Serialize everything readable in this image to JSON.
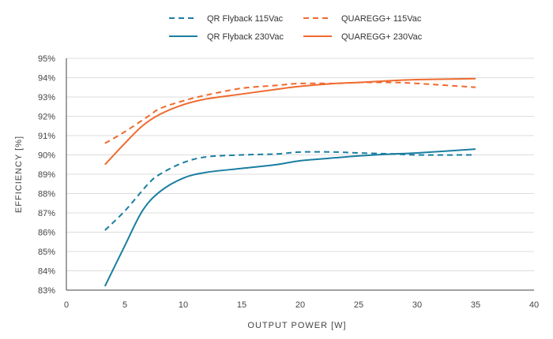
{
  "chart_data": {
    "type": "line",
    "title": "",
    "xlabel": "OUTPUT POWER [W]",
    "ylabel": "EFFICIENCY [%]",
    "xlim": [
      0,
      40
    ],
    "ylim": [
      83,
      95
    ],
    "xticks": [
      0,
      5,
      10,
      15,
      20,
      25,
      30,
      35,
      40
    ],
    "yticks": [
      83,
      84,
      85,
      86,
      87,
      88,
      89,
      90,
      91,
      92,
      93,
      94,
      95
    ],
    "ytick_suffix": "%",
    "grid": "horizontal",
    "legend_position": "top",
    "series": [
      {
        "name": "QR Flyback 115Vac",
        "color": "#1a7ea0",
        "style": "dashed",
        "x": [
          3.3,
          5,
          7,
          8,
          10,
          12,
          15,
          18,
          20,
          23,
          25,
          28,
          30,
          35
        ],
        "y": [
          86.1,
          87.1,
          88.5,
          89.0,
          89.6,
          89.9,
          90.0,
          90.05,
          90.15,
          90.15,
          90.1,
          90.05,
          90.0,
          90.0
        ]
      },
      {
        "name": "QR Flyback 230Vac",
        "color": "#1a7ea0",
        "style": "solid",
        "x": [
          3.3,
          5,
          6.5,
          8,
          10,
          12,
          15,
          18,
          20,
          23,
          25,
          28,
          30,
          35
        ],
        "y": [
          83.2,
          85.3,
          87.1,
          88.1,
          88.8,
          89.1,
          89.3,
          89.5,
          89.7,
          89.85,
          89.95,
          90.05,
          90.1,
          90.3
        ]
      },
      {
        "name": "QUAREGG+ 115Vac",
        "color": "#ef6a2e",
        "style": "dashed",
        "x": [
          3.3,
          5,
          7,
          8,
          10,
          12,
          15,
          18,
          20,
          23,
          25,
          28,
          30,
          35
        ],
        "y": [
          90.6,
          91.2,
          92.0,
          92.4,
          92.8,
          93.1,
          93.45,
          93.6,
          93.7,
          93.7,
          93.75,
          93.75,
          93.7,
          93.5
        ]
      },
      {
        "name": "QUAREGG+ 230Vac",
        "color": "#ef6a2e",
        "style": "solid",
        "x": [
          3.3,
          5,
          6.5,
          8,
          10,
          12,
          15,
          18,
          20,
          23,
          25,
          28,
          30,
          35
        ],
        "y": [
          89.5,
          90.6,
          91.5,
          92.1,
          92.6,
          92.9,
          93.15,
          93.4,
          93.55,
          93.7,
          93.75,
          93.85,
          93.9,
          93.95
        ]
      }
    ]
  }
}
